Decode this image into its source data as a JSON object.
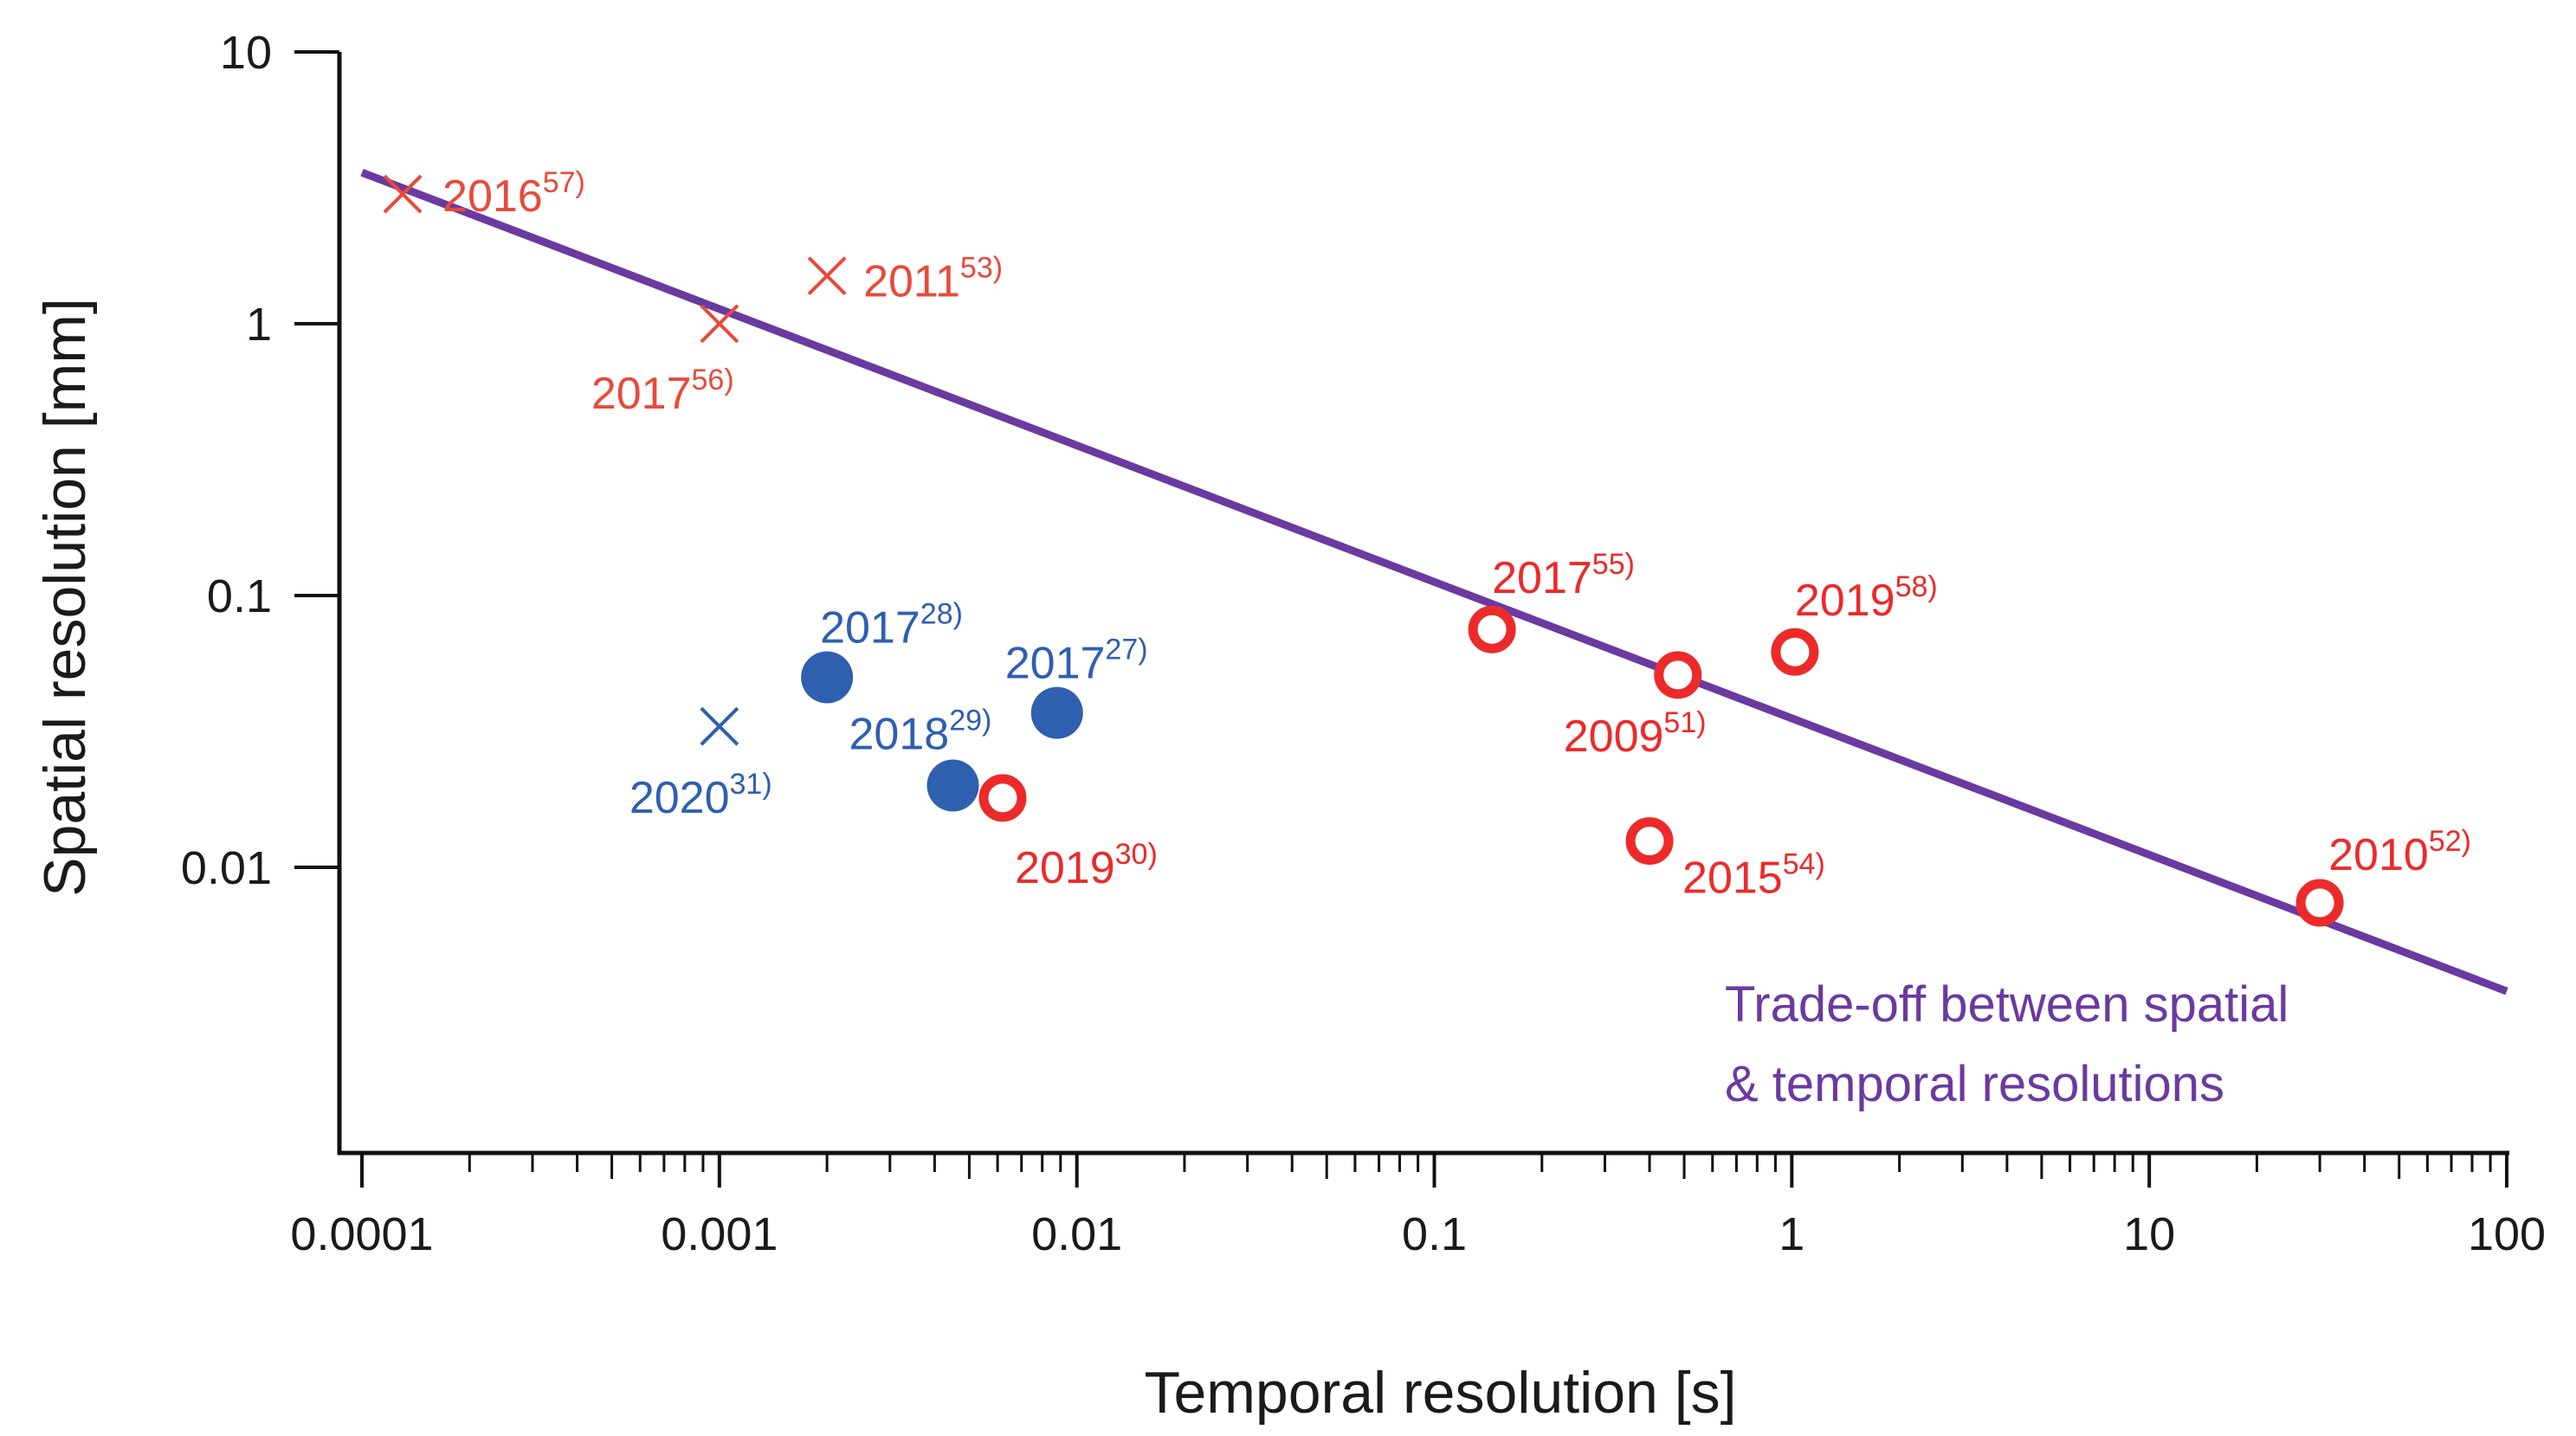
{
  "chart_data": {
    "type": "scatter",
    "xlabel": "Temporal resolution [s]",
    "ylabel": "Spatial resolution [mm]",
    "xscale": "log",
    "yscale": "log",
    "xlim": [
      0.0001,
      100
    ],
    "ylim": [
      0.0007,
      10
    ],
    "x_tick_labels": [
      "0.0001",
      "0.001",
      "0.01",
      "0.1",
      "1",
      "10",
      "100"
    ],
    "y_tick_labels": [
      "10",
      "1",
      "0.1",
      "0.01"
    ],
    "trend_line": {
      "label_lines": [
        "Trade-off between spatial",
        "& temporal resolutions"
      ],
      "color": "#6a3aa0",
      "x": [
        0.0001,
        100
      ],
      "y": [
        3.6,
        0.0035
      ]
    },
    "series": [
      {
        "name": "cross-red",
        "marker": "x",
        "color": "#e84a3a",
        "points": [
          {
            "x": 0.00013,
            "y": 3.0,
            "year": "2016",
            "ref": "57)",
            "anchor": "start"
          },
          {
            "x": 0.001,
            "y": 1.0,
            "year": "2017",
            "ref": "56)",
            "anchor": "below"
          },
          {
            "x": 0.002,
            "y": 1.5,
            "year": "2011",
            "ref": "53)",
            "anchor": "start"
          }
        ]
      },
      {
        "name": "open-circle-red",
        "marker": "open-circle",
        "color": "#ec2a2a",
        "points": [
          {
            "x": 0.0062,
            "y": 0.018,
            "year": "2019",
            "ref": "30)",
            "anchor": "below-right"
          },
          {
            "x": 0.145,
            "y": 0.075,
            "year": "2017",
            "ref": "55)",
            "anchor": "above-right"
          },
          {
            "x": 0.48,
            "y": 0.051,
            "year": "2009",
            "ref": "51)",
            "anchor": "below-left"
          },
          {
            "x": 1.02,
            "y": 0.062,
            "year": "2019",
            "ref": "58)",
            "anchor": "above-right"
          },
          {
            "x": 0.4,
            "y": 0.0125,
            "year": "2015",
            "ref": "54)",
            "anchor": "below-right"
          },
          {
            "x": 30,
            "y": 0.0074,
            "year": "2010",
            "ref": "52)",
            "anchor": "above-right"
          }
        ]
      },
      {
        "name": "filled-circle-blue",
        "marker": "filled-circle",
        "color": "#2f5faf",
        "points": [
          {
            "x": 0.002,
            "y": 0.05,
            "year": "2017",
            "ref": "28)",
            "anchor": "above-right"
          },
          {
            "x": 0.0088,
            "y": 0.037,
            "year": "2017",
            "ref": "27)",
            "anchor": "above-left"
          },
          {
            "x": 0.0045,
            "y": 0.02,
            "year": "2018",
            "ref": "29)",
            "anchor": "above-left"
          }
        ]
      },
      {
        "name": "cross-blue",
        "marker": "x",
        "color": "#2f5faf",
        "points": [
          {
            "x": 0.001,
            "y": 0.033,
            "year": "2020",
            "ref": "31)",
            "anchor": "below"
          }
        ]
      }
    ]
  },
  "colors": {
    "axis": "#111111",
    "text": "#1a1a1a"
  }
}
